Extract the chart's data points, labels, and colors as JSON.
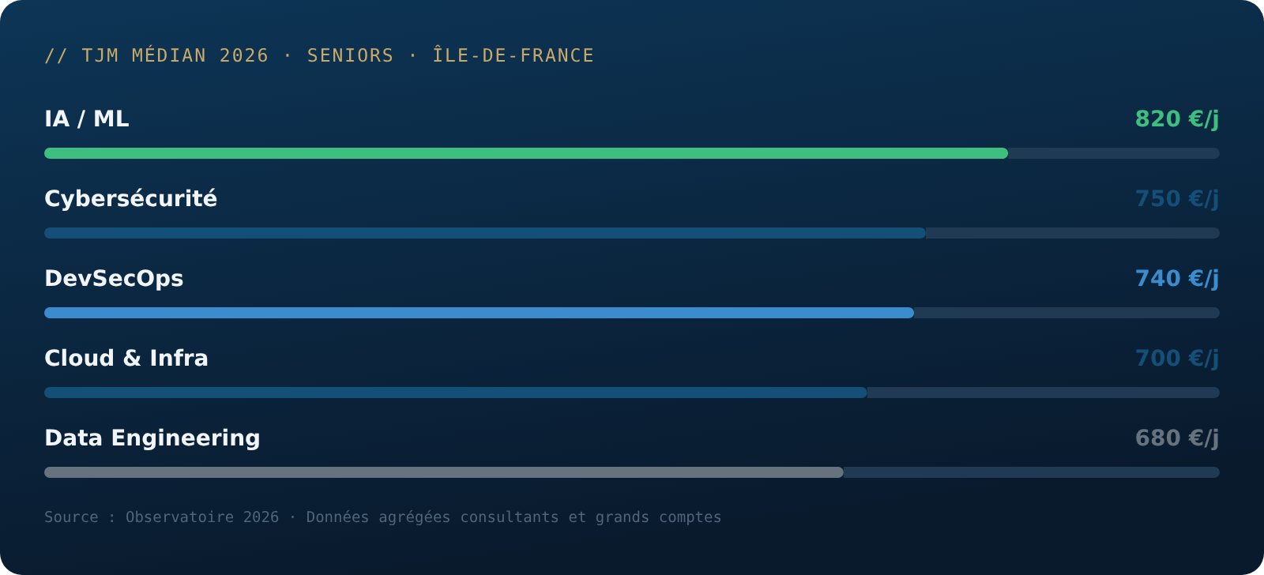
{
  "chart_data": {
    "type": "bar",
    "orientation": "horizontal",
    "title": "// TJM MÉDIAN 2026 · SENIORS · ÎLE-DE-FRANCE",
    "categories": [
      "IA / ML",
      "Cybersécurité",
      "DevSecOps",
      "Cloud & Infra",
      "Data Engineering"
    ],
    "values": [
      820,
      750,
      740,
      700,
      680
    ],
    "colors": [
      "#3fbf7f",
      "#144f78",
      "#3a8ccc",
      "#144f78",
      "#66737f"
    ],
    "value_labels": [
      "820 €/j",
      "750 €/j",
      "740 €/j",
      "700 €/j",
      "680 €/j"
    ],
    "xlim": [
      0,
      1000
    ],
    "annotations": [
      "Source : Observatoire 2026 · Données agrégées consultants et grands comptes"
    ]
  }
}
